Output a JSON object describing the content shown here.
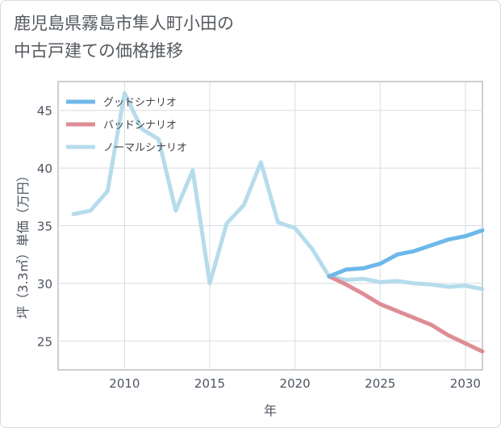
{
  "title_line1": "鹿児島県霧島市隼人町小田の",
  "title_line2": "中古戸建ての価格推移",
  "chart_data": {
    "type": "line",
    "xlabel": "年",
    "ylabel": "坪（3.3㎡）単価（万円）",
    "xlim": [
      2006.1,
      2031
    ],
    "ylim": [
      22.5,
      47.5
    ],
    "xticks": [
      2010,
      2015,
      2020,
      2025,
      2030
    ],
    "yticks": [
      25,
      30,
      35,
      40,
      45
    ],
    "grid": true,
    "legend_position": "top-left",
    "series": [
      {
        "name": "グッドシナリオ",
        "color": "#6cb8ea",
        "x": [
          2022,
          2023,
          2024,
          2025,
          2026,
          2027,
          2028,
          2029,
          2030,
          2031
        ],
        "values": [
          30.6,
          31.2,
          31.3,
          31.7,
          32.5,
          32.8,
          33.3,
          33.8,
          34.1,
          34.6
        ]
      },
      {
        "name": "バッドシナリオ",
        "color": "#de8d95",
        "x": [
          2022,
          2023,
          2024,
          2025,
          2026,
          2027,
          2028,
          2029,
          2030,
          2031
        ],
        "values": [
          30.6,
          29.9,
          29.1,
          28.2,
          27.6,
          27.0,
          26.4,
          25.5,
          24.8,
          24.1
        ]
      },
      {
        "name": "ノーマルシナリオ",
        "color": "#b6dcec",
        "x": [
          2007,
          2008,
          2009,
          2010,
          2011,
          2012,
          2013,
          2014,
          2015,
          2016,
          2017,
          2018,
          2019,
          2020,
          2021,
          2022,
          2023,
          2024,
          2025,
          2026,
          2027,
          2028,
          2029,
          2030,
          2031
        ],
        "values": [
          36.0,
          36.3,
          38.0,
          46.5,
          43.4,
          42.5,
          36.3,
          39.8,
          30.0,
          35.2,
          36.8,
          40.5,
          35.3,
          34.8,
          33.0,
          30.6,
          30.3,
          30.4,
          30.1,
          30.2,
          30.0,
          29.9,
          29.7,
          29.8,
          29.5
        ]
      }
    ]
  }
}
